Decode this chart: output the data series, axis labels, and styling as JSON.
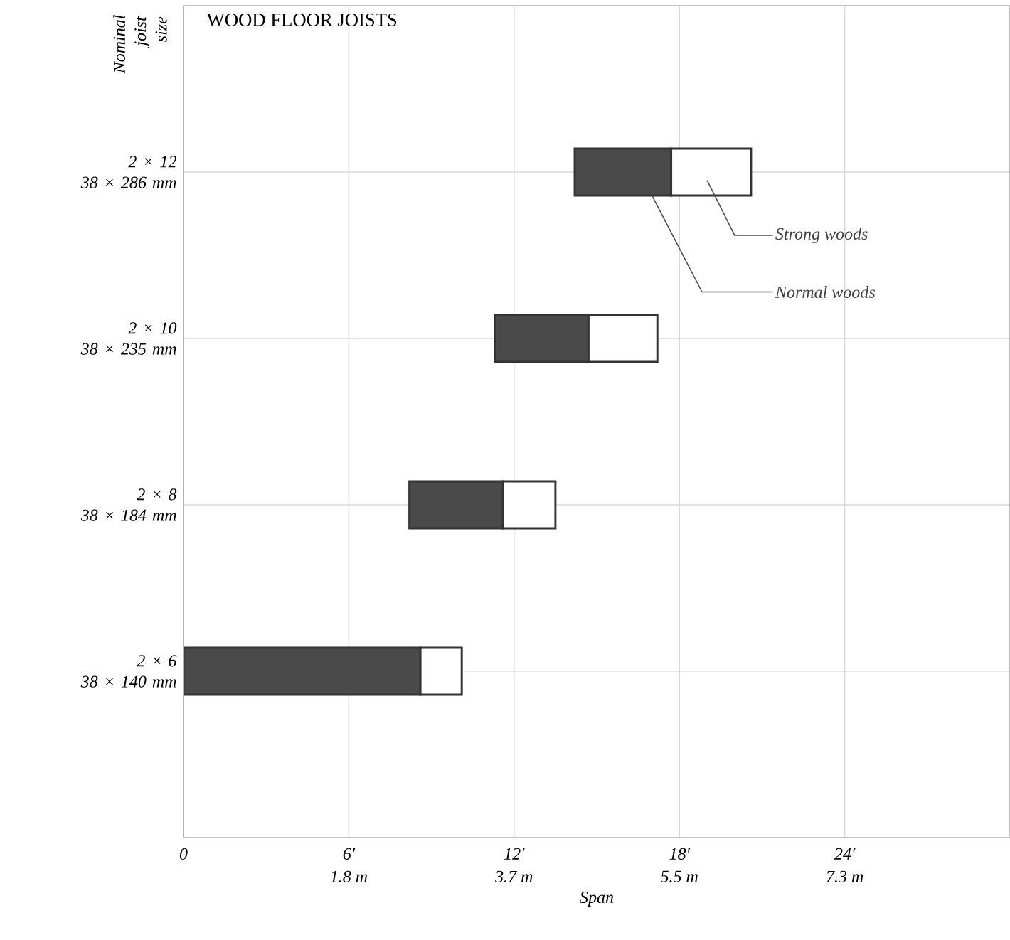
{
  "chart_data": {
    "type": "bar",
    "orientation": "horizontal",
    "title": "WOOD FLOOR JOISTS",
    "xlabel": "Span",
    "ylabel": "Nominal joist size",
    "categories": [
      "2 × 12 38 × 286 mm",
      "2 × 10 38 × 235 mm",
      "2 × 8 38 × 184 mm",
      "2 × 6 38 × 140 mm"
    ],
    "series": [
      {
        "name": "Normal woods",
        "color": "#4a4a4a",
        "base": [
          14.2,
          11.3,
          8.2,
          0
        ],
        "values": [
          3.5,
          3.4,
          3.4,
          8.6
        ]
      },
      {
        "name": "Strong woods",
        "color": "#ffffff",
        "base": [
          17.7,
          14.7,
          11.6,
          8.6
        ],
        "values": [
          2.9,
          2.5,
          1.9,
          1.5
        ]
      }
    ],
    "xlim": [
      0,
      30
    ],
    "xticks": [
      0,
      {
        "value": 6,
        "label": "6′"
      },
      {
        "value": 12,
        "label": "12′"
      },
      {
        "value": 18,
        "label": "18′"
      },
      {
        "value": 24,
        "label": "24′"
      }
    ],
    "x2lim": [
      0,
      9.144
    ],
    "x2ticks": [
      {
        "value": 1.8288,
        "label": "1.8 m"
      },
      {
        "value": 3.6576,
        "label": "3.7 m"
      },
      {
        "value": 5.4864,
        "label": "5.5 m"
      },
      {
        "value": 7.3152,
        "label": "7.3 m"
      }
    ],
    "grid": true
  }
}
